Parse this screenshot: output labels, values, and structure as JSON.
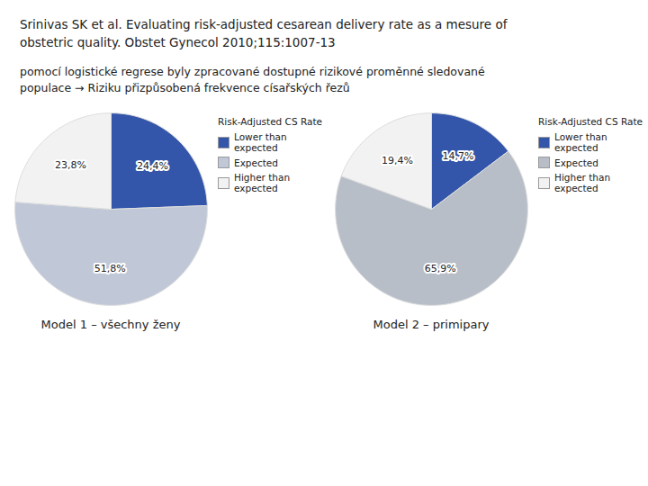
{
  "title": [
    "Srinivas SK et al. Evaluating risk-adjusted cesarean delivery rate as a mesure of",
    "obstetric quality. Obstet Gynecol 2010;115:1007-13"
  ],
  "subtitle": [
    "pomocí logistické regrese byly zpracované dostupné rizikové proměnné sledované",
    "populace → Riziku přizpůsobená frekvence císařských řezů"
  ],
  "chart_data": [
    {
      "type": "pie",
      "title": "Model 1 – všechny ženy",
      "categories": [
        "Lower than expected",
        "Expected",
        "Higher than expected"
      ],
      "values": [
        24.4,
        51.8,
        23.8
      ],
      "value_labels": [
        "24,4%",
        "51,8%",
        "23,8%"
      ],
      "colors": [
        "#3355aa",
        "#c0c8d8",
        "#f2f2f2"
      ],
      "legend_title": "Risk-Adjusted CS Rate",
      "legend": "right",
      "data_labels": true
    },
    {
      "type": "pie",
      "title": "Model 2 – primipary",
      "categories": [
        "Lower than expected",
        "Expected",
        "Higher than expected"
      ],
      "values": [
        14.7,
        65.9,
        19.4
      ],
      "value_labels": [
        "14,7%",
        "65,9%",
        "19,4%"
      ],
      "colors": [
        "#3355aa",
        "#b8bec8",
        "#f2f2f2"
      ],
      "legend_title": "Risk-Adjusted CS Rate",
      "legend": "right",
      "data_labels": true
    }
  ]
}
